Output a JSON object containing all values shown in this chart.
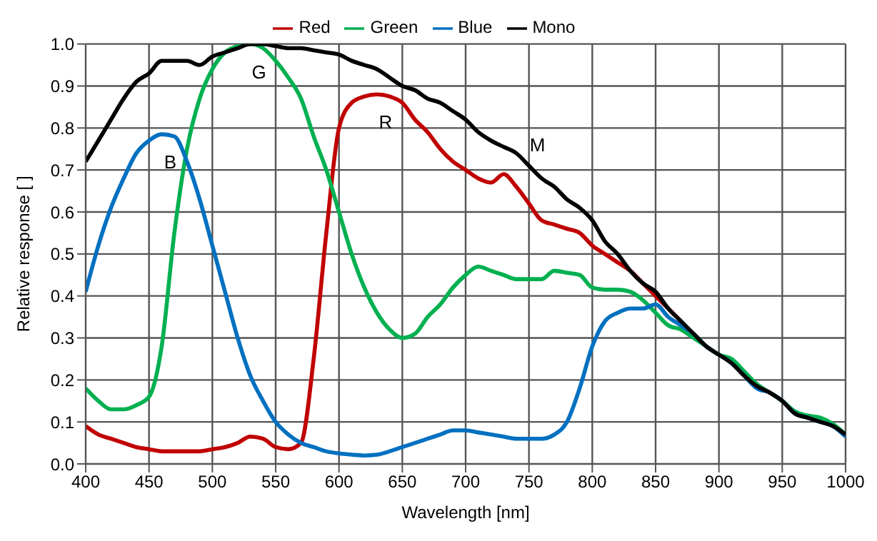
{
  "chart_data": {
    "type": "line",
    "xlabel": "Wavelength [nm]",
    "ylabel": "Relative response [ ]",
    "x": [
      400,
      410,
      420,
      430,
      440,
      450,
      460,
      470,
      480,
      490,
      500,
      510,
      520,
      530,
      540,
      550,
      560,
      570,
      580,
      590,
      600,
      610,
      620,
      630,
      640,
      650,
      660,
      670,
      680,
      690,
      700,
      710,
      720,
      730,
      740,
      750,
      760,
      770,
      780,
      790,
      800,
      810,
      820,
      830,
      840,
      850,
      860,
      870,
      880,
      890,
      900,
      910,
      920,
      930,
      940,
      950,
      960,
      970,
      980,
      990,
      1000
    ],
    "series": [
      {
        "name": "Red",
        "color": "#c00000",
        "values": [
          0.09,
          0.07,
          0.06,
          0.05,
          0.04,
          0.035,
          0.03,
          0.03,
          0.03,
          0.03,
          0.035,
          0.04,
          0.05,
          0.065,
          0.06,
          0.04,
          0.035,
          0.05,
          0.25,
          0.55,
          0.8,
          0.86,
          0.875,
          0.88,
          0.875,
          0.86,
          0.82,
          0.79,
          0.75,
          0.72,
          0.7,
          0.68,
          0.67,
          0.69,
          0.66,
          0.62,
          0.58,
          0.57,
          0.56,
          0.55,
          0.52,
          0.5,
          0.48,
          0.46,
          0.43,
          0.4,
          0.37,
          0.34,
          null,
          null,
          null,
          null,
          null,
          null,
          null,
          null,
          null,
          null,
          null,
          null,
          null
        ]
      },
      {
        "name": "Green",
        "color": "#00b050",
        "values": [
          0.18,
          0.15,
          0.13,
          0.13,
          0.14,
          0.16,
          0.28,
          0.55,
          0.75,
          0.87,
          0.94,
          0.98,
          0.995,
          1.0,
          0.99,
          0.96,
          0.92,
          0.87,
          0.78,
          0.7,
          0.6,
          0.5,
          0.42,
          0.36,
          0.32,
          0.3,
          0.31,
          0.35,
          0.38,
          0.42,
          0.45,
          0.47,
          0.46,
          0.45,
          0.44,
          0.44,
          0.44,
          0.46,
          0.455,
          0.45,
          0.42,
          0.415,
          0.415,
          0.41,
          0.39,
          0.36,
          0.33,
          0.32,
          0.3,
          0.28,
          0.26,
          0.25,
          0.22,
          0.19,
          0.17,
          0.15,
          0.125,
          0.115,
          0.11,
          0.095,
          0.07
        ]
      },
      {
        "name": "Blue",
        "color": "#0070c0",
        "values": [
          0.41,
          0.52,
          0.61,
          0.68,
          0.74,
          0.77,
          0.785,
          0.78,
          0.72,
          0.63,
          0.52,
          0.41,
          0.3,
          0.21,
          0.15,
          0.1,
          0.07,
          0.05,
          0.04,
          0.03,
          0.025,
          0.022,
          0.02,
          0.022,
          0.03,
          0.04,
          0.05,
          0.06,
          0.07,
          0.08,
          0.08,
          0.075,
          0.07,
          0.065,
          0.06,
          0.06,
          0.06,
          0.07,
          0.1,
          0.18,
          0.28,
          0.34,
          0.36,
          0.37,
          0.37,
          0.38,
          0.35,
          0.33,
          0.31,
          0.28,
          0.26,
          0.24,
          0.21,
          0.18,
          0.17,
          0.15,
          0.12,
          0.11,
          0.1,
          0.09,
          0.065
        ]
      },
      {
        "name": "Mono",
        "color": "#000000",
        "values": [
          0.72,
          0.77,
          0.82,
          0.87,
          0.91,
          0.93,
          0.96,
          0.96,
          0.96,
          0.95,
          0.97,
          0.98,
          0.99,
          1.0,
          1.0,
          0.995,
          0.99,
          0.99,
          0.985,
          0.98,
          0.975,
          0.96,
          0.95,
          0.94,
          0.92,
          0.9,
          0.89,
          0.87,
          0.86,
          0.84,
          0.82,
          0.79,
          0.77,
          0.755,
          0.74,
          0.71,
          0.68,
          0.66,
          0.63,
          0.61,
          0.58,
          0.53,
          0.5,
          0.46,
          0.43,
          0.41,
          0.37,
          0.34,
          0.31,
          0.28,
          0.26,
          0.24,
          0.21,
          0.185,
          0.17,
          0.15,
          0.12,
          0.11,
          0.1,
          0.09,
          0.07
        ]
      }
    ],
    "xlim": [
      400,
      1000
    ],
    "xticks": [
      400,
      450,
      500,
      550,
      600,
      650,
      700,
      750,
      800,
      850,
      900,
      950,
      1000
    ],
    "ylim": [
      0,
      1
    ],
    "yticks": [
      {
        "value": 0,
        "label": "0.0"
      },
      {
        "value": 0.1,
        "label": "0.1"
      },
      {
        "value": 0.2,
        "label": "0.2"
      },
      {
        "value": 0.3,
        "label": "0.3"
      },
      {
        "value": 0.4,
        "label": "0.4"
      },
      {
        "value": 0.5,
        "label": "0.5"
      },
      {
        "value": 0.6,
        "label": "0.6"
      },
      {
        "value": 0.7,
        "label": "0.7"
      },
      {
        "value": 0.8,
        "label": "0.8"
      },
      {
        "value": 0.9,
        "label": "0.9"
      },
      {
        "value": 1,
        "label": "1.0"
      }
    ],
    "annotations": [
      {
        "text": "B",
        "x": 460,
        "y": 0.785
      },
      {
        "text": "G",
        "x": 530,
        "y": 1.0
      },
      {
        "text": "R",
        "x": 630,
        "y": 0.88
      },
      {
        "text": "M",
        "x": 750,
        "y": 0.71
      }
    ],
    "grid": true,
    "legend": "top",
    "marker": "none",
    "line_style": "solid"
  }
}
